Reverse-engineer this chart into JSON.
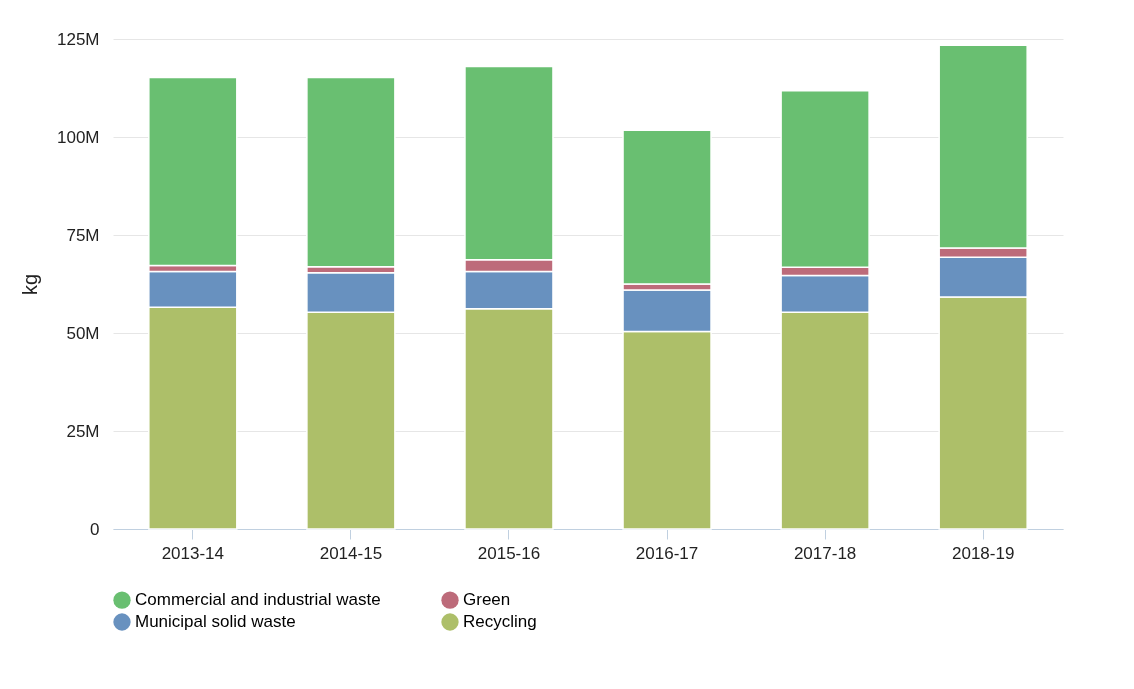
{
  "chart_data": {
    "type": "bar",
    "stacked": true,
    "ylabel": "kg",
    "categories": [
      "2013-14",
      "2014-15",
      "2015-16",
      "2016-17",
      "2017-18",
      "2018-19"
    ],
    "series": [
      {
        "name": "Recycling",
        "color": "#adbf69",
        "values": [
          56600000,
          55300000,
          56200000,
          50400000,
          55300000,
          59200000
        ]
      },
      {
        "name": "Municipal solid waste",
        "color": "#6891bf",
        "values": [
          9100000,
          10100000,
          9500000,
          10600000,
          9400000,
          10100000
        ]
      },
      {
        "name": "Green",
        "color": "#bd6b7a",
        "values": [
          1500000,
          1500000,
          3000000,
          1500000,
          2100000,
          2400000
        ]
      },
      {
        "name": "Commercial and industrial waste",
        "color": "#69bf71",
        "values": [
          48000000,
          48300000,
          49300000,
          39200000,
          45000000,
          51700000
        ]
      }
    ],
    "ylim": [
      0,
      125000000
    ],
    "yticks": [
      {
        "value": 0,
        "label": "0"
      },
      {
        "value": 25000000,
        "label": "25M"
      },
      {
        "value": 50000000,
        "label": "50M"
      },
      {
        "value": 75000000,
        "label": "75M"
      },
      {
        "value": 100000000,
        "label": "100M"
      },
      {
        "value": 125000000,
        "label": "125M"
      }
    ],
    "grid": "y",
    "legend": "bottom"
  }
}
